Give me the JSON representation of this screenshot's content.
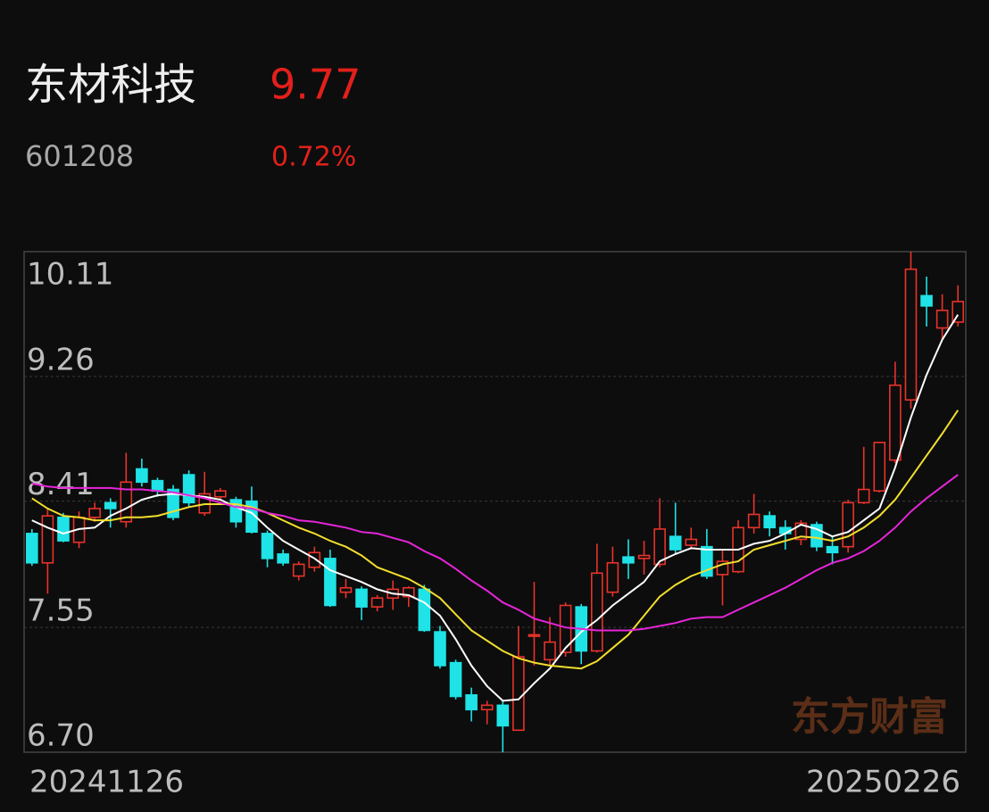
{
  "header": {
    "name": "东材科技",
    "price": "9.77",
    "code": "601208",
    "change": "0.72%"
  },
  "chart_data": {
    "type": "candlestick",
    "categories": [
      "20241126",
      null,
      null,
      null,
      null,
      null,
      null,
      null,
      null,
      null,
      null,
      null,
      null,
      null,
      null,
      null,
      null,
      null,
      null,
      null,
      null,
      null,
      null,
      null,
      null,
      null,
      null,
      null,
      null,
      null,
      null,
      null,
      null,
      null,
      null,
      null,
      null,
      null,
      null,
      null,
      null,
      null,
      null,
      null,
      null,
      null,
      null,
      null,
      null,
      null,
      null,
      null,
      null,
      null,
      null,
      null,
      null,
      null,
      null,
      "20250226"
    ],
    "open": [
      8.19,
      7.99,
      8.3,
      8.13,
      8.3,
      8.4,
      8.27,
      8.63,
      8.55,
      8.49,
      8.59,
      8.33,
      8.44,
      8.42,
      8.41,
      8.19,
      8.05,
      7.9,
      7.96,
      8.02,
      7.79,
      7.81,
      7.69,
      7.75,
      7.76,
      7.81,
      7.52,
      7.31,
      7.09,
      6.99,
      7.02,
      6.85,
      7.49,
      7.33,
      7.38,
      7.69,
      7.39,
      7.79,
      8.03,
      8.02,
      7.98,
      8.17,
      8.11,
      8.1,
      7.91,
      7.93,
      8.23,
      8.31,
      8.23,
      8.15,
      8.25,
      8.1,
      8.1,
      8.4,
      8.48,
      8.69,
      9.1,
      9.81,
      9.59,
      9.63
    ],
    "high": [
      8.22,
      8.36,
      8.33,
      8.34,
      8.4,
      8.43,
      8.74,
      8.7,
      8.57,
      8.52,
      8.62,
      8.61,
      8.5,
      8.44,
      8.51,
      8.21,
      8.08,
      8.0,
      8.1,
      8.08,
      7.88,
      7.83,
      7.77,
      7.87,
      7.83,
      7.84,
      7.56,
      7.33,
      7.14,
      7.05,
      7.05,
      7.56,
      7.86,
      7.62,
      7.72,
      7.71,
      8.12,
      8.1,
      8.15,
      8.14,
      8.43,
      8.4,
      8.23,
      8.22,
      8.08,
      8.28,
      8.46,
      8.34,
      8.28,
      8.28,
      8.27,
      8.17,
      8.42,
      8.78,
      8.81,
      9.36,
      10.11,
      9.94,
      9.82,
      9.88
    ],
    "low": [
      7.97,
      7.78,
      8.13,
      8.09,
      8.27,
      8.23,
      8.23,
      8.51,
      8.44,
      8.28,
      8.37,
      8.31,
      8.42,
      8.23,
      8.19,
      7.96,
      7.97,
      7.87,
      7.93,
      7.69,
      7.75,
      7.6,
      7.66,
      7.67,
      7.69,
      7.52,
      7.27,
      7.06,
      6.91,
      6.89,
      6.7,
      6.85,
      7.29,
      7.29,
      7.35,
      7.3,
      7.38,
      7.76,
      7.88,
      7.91,
      7.96,
      8.05,
      8.08,
      7.88,
      7.7,
      7.92,
      8.19,
      8.17,
      8.08,
      8.11,
      8.07,
      7.98,
      8.06,
      8.39,
      8.47,
      8.67,
      9.04,
      9.6,
      9.51,
      9.6
    ],
    "close": [
      7.99,
      8.31,
      8.14,
      8.3,
      8.36,
      8.36,
      8.54,
      8.54,
      8.48,
      8.3,
      8.4,
      8.46,
      8.48,
      8.27,
      8.2,
      8.02,
      7.99,
      7.98,
      8.06,
      7.7,
      7.82,
      7.69,
      7.75,
      7.81,
      7.82,
      7.53,
      7.29,
      7.08,
      6.99,
      7.02,
      6.88,
      7.35,
      7.5,
      7.45,
      7.7,
      7.39,
      7.92,
      7.99,
      7.99,
      8.04,
      8.22,
      8.08,
      8.15,
      7.9,
      8.0,
      8.23,
      8.32,
      8.23,
      8.19,
      8.26,
      8.1,
      8.06,
      8.4,
      8.49,
      8.81,
      9.2,
      9.99,
      9.74,
      9.71,
      9.77
    ],
    "up_color": "#e8332a",
    "down_color": "#1fe3e6",
    "ma_lines": [
      {
        "color": "#ffffff",
        "values": [
          8.28,
          8.23,
          8.19,
          8.22,
          8.23,
          8.31,
          8.36,
          8.42,
          8.45,
          8.46,
          8.45,
          8.44,
          8.42,
          8.37,
          8.33,
          8.23,
          8.14,
          8.08,
          8.02,
          7.94,
          7.9,
          7.86,
          7.81,
          7.78,
          7.77,
          7.72,
          7.63,
          7.47,
          7.29,
          7.15,
          7.05,
          7.06,
          7.17,
          7.27,
          7.41,
          7.52,
          7.6,
          7.7,
          7.78,
          7.86,
          8.0,
          8.05,
          8.09,
          8.08,
          8.08,
          8.08,
          8.12,
          8.14,
          8.19,
          8.25,
          8.22,
          8.17,
          8.2,
          8.28,
          8.36,
          8.64,
          8.98,
          9.27,
          9.51,
          9.68
        ]
      },
      {
        "color": "#f2de2c",
        "values": [
          8.43,
          8.36,
          8.31,
          8.3,
          8.28,
          8.28,
          8.3,
          8.3,
          8.31,
          8.34,
          8.37,
          8.39,
          8.39,
          8.39,
          8.37,
          8.33,
          8.28,
          8.23,
          8.19,
          8.14,
          8.1,
          8.04,
          7.96,
          7.92,
          7.88,
          7.82,
          7.75,
          7.64,
          7.53,
          7.46,
          7.39,
          7.34,
          7.31,
          7.29,
          7.28,
          7.27,
          7.32,
          7.41,
          7.5,
          7.63,
          7.76,
          7.84,
          7.9,
          7.94,
          7.98,
          8.0,
          8.08,
          8.11,
          8.14,
          8.17,
          8.16,
          8.14,
          8.17,
          8.23,
          8.31,
          8.42,
          8.57,
          8.72,
          8.87,
          9.03
        ]
      },
      {
        "color": "#e625d8",
        "values": [
          8.53,
          8.51,
          8.5,
          8.5,
          8.5,
          8.5,
          8.49,
          8.49,
          8.48,
          8.47,
          8.45,
          8.43,
          8.4,
          8.37,
          8.36,
          8.33,
          8.31,
          8.28,
          8.27,
          8.25,
          8.23,
          8.2,
          8.19,
          8.16,
          8.13,
          8.07,
          8.02,
          7.95,
          7.87,
          7.8,
          7.72,
          7.67,
          7.61,
          7.58,
          7.55,
          7.54,
          7.53,
          7.53,
          7.53,
          7.54,
          7.56,
          7.58,
          7.61,
          7.62,
          7.62,
          7.67,
          7.72,
          7.77,
          7.82,
          7.88,
          7.94,
          7.99,
          8.02,
          8.07,
          8.14,
          8.23,
          8.34,
          8.43,
          8.51,
          8.59
        ]
      }
    ],
    "ylim": [
      6.7,
      10.11
    ],
    "yticks": [
      10.11,
      9.26,
      8.41,
      7.55,
      {
        "value": 6.7,
        "label": "6.70"
      }
    ],
    "grid": true,
    "watermark": "东方财富"
  }
}
